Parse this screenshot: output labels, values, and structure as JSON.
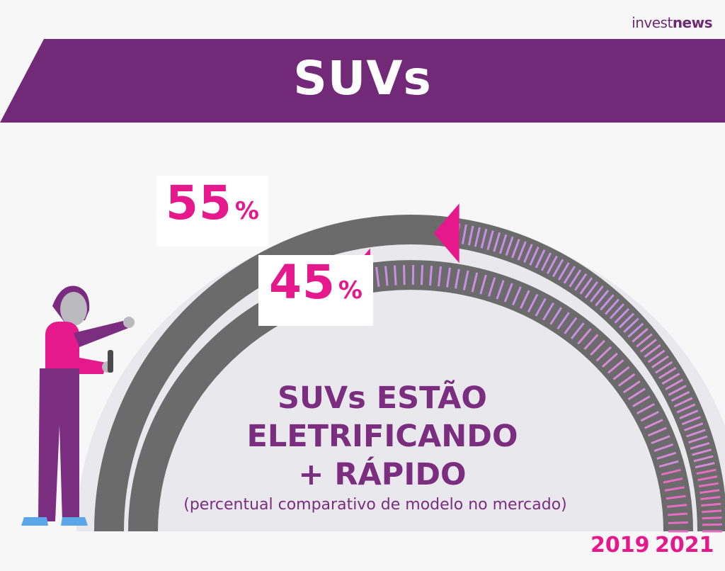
{
  "brand": {
    "logo_light": "invest",
    "logo_bold": "news"
  },
  "banner": {
    "title": "SUVs"
  },
  "headline": {
    "line1": "SUVs ESTÃO",
    "line2": "ELETRIFICANDO",
    "line3": "+ RÁPIDO",
    "subtitle": "(percentual comparativo de modelo no mercado)"
  },
  "colors": {
    "purple": "#722a78",
    "pink": "#e5198c",
    "gray_track": "#6b6b6b",
    "lavender": "#c98ee6",
    "background": "#f7f7f8"
  },
  "chart_data": {
    "type": "radial-gauge",
    "categories": [
      "2019",
      "2021"
    ],
    "values": [
      45,
      55
    ],
    "unit": "%",
    "labels": {
      "v2019": "45",
      "v2021": "55",
      "unit": "%"
    }
  }
}
